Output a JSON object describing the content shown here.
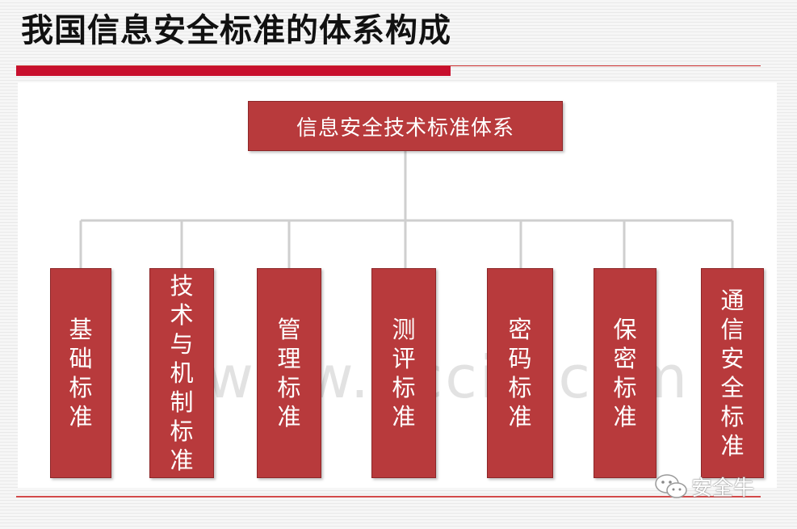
{
  "title": "我国信息安全标准的体系构成",
  "root": {
    "label": "信息安全技术标准体系"
  },
  "children": [
    {
      "label": "基础标准"
    },
    {
      "label": "技术与机制标准"
    },
    {
      "label": "管理标准"
    },
    {
      "label": "测评标准"
    },
    {
      "label": "密码标准"
    },
    {
      "label": "保密标准"
    },
    {
      "label": "通信安全标准"
    }
  ],
  "watermark": "www.dccin.com",
  "wechat": {
    "label": "安全牛",
    "icon": "wechat-icon"
  },
  "colors": {
    "accent": "#c8102e",
    "box_fill": "#b83a3c",
    "line": "#cfcfcf"
  }
}
